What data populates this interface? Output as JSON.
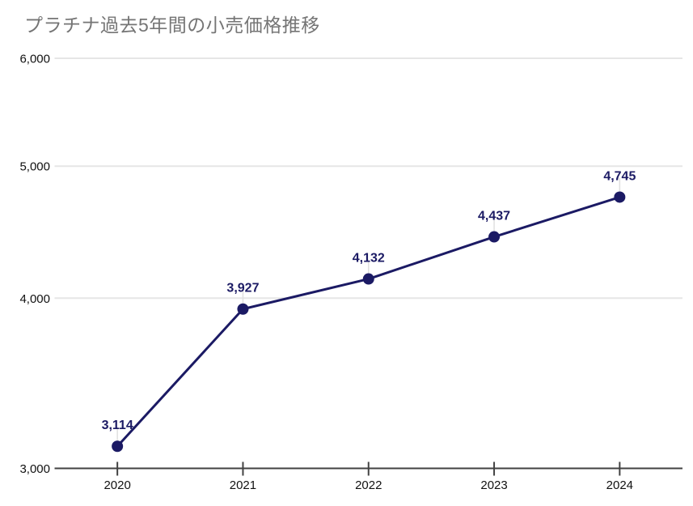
{
  "colors": {
    "background": "#ffffff",
    "title_text": "#757575",
    "axis_text": "#111111",
    "axis_line": "#424242",
    "gridline": "#e6e6e6",
    "leader_line": "#e0e0e0",
    "series": "#1b1a64"
  },
  "chart_data": {
    "type": "line",
    "title": "プラチナ過去5年間の小売価格推移",
    "xlabel": "",
    "ylabel": "",
    "categories": [
      "2020",
      "2021",
      "2022",
      "2023",
      "2024"
    ],
    "series": [
      {
        "name": "",
        "values": [
          3114,
          3927,
          4132,
          4437,
          4745
        ],
        "point_labels": [
          "3,114",
          "3,927",
          "4,132",
          "4,437",
          "4,745"
        ]
      }
    ],
    "y_axis": {
      "scale": "log",
      "ylim": [
        3000,
        6000
      ],
      "ticks": [
        {
          "value": 3000,
          "label": "3,000"
        },
        {
          "value": 4000,
          "label": "4,000"
        },
        {
          "value": 5000,
          "label": "5,000"
        },
        {
          "value": 6000,
          "label": "6,000"
        }
      ]
    },
    "grid": "horizontal",
    "legend": "none",
    "markers": "filled-circle",
    "data_labels_position": "above"
  }
}
